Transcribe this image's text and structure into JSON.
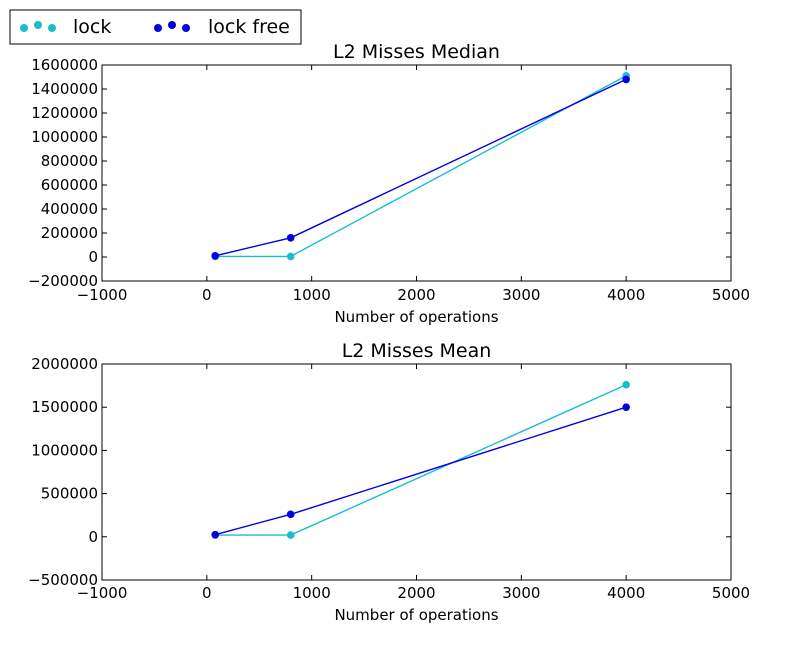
{
  "legend": {
    "placement": "top-left, outside plots",
    "entries": [
      {
        "label": "lock",
        "color": "#17becf"
      },
      {
        "label": "lock free",
        "color": "#0000e0"
      }
    ]
  },
  "chart_data": [
    {
      "type": "line",
      "title": "L2 Misses Median",
      "xlabel": "Number of operations",
      "ylabel": "",
      "xlim": [
        -1000,
        5000
      ],
      "ylim": [
        -200000,
        1600000
      ],
      "xticks": [
        -1000,
        0,
        1000,
        2000,
        3000,
        4000,
        5000
      ],
      "yticks": [
        -200000,
        0,
        200000,
        400000,
        600000,
        800000,
        1000000,
        1200000,
        1400000,
        1600000
      ],
      "grid": false,
      "series": [
        {
          "name": "lock",
          "color": "#17becf",
          "x": [
            80,
            800,
            4000
          ],
          "y": [
            5000,
            5000,
            1510000
          ]
        },
        {
          "name": "lock free",
          "color": "#0000e0",
          "x": [
            80,
            800,
            4000
          ],
          "y": [
            10000,
            160000,
            1480000
          ]
        }
      ]
    },
    {
      "type": "line",
      "title": "L2 Misses Mean",
      "xlabel": "Number of operations",
      "ylabel": "",
      "xlim": [
        -1000,
        5000
      ],
      "ylim": [
        -500000,
        2000000
      ],
      "xticks": [
        -1000,
        0,
        1000,
        2000,
        3000,
        4000,
        5000
      ],
      "yticks": [
        -500000,
        0,
        500000,
        1000000,
        1500000,
        2000000
      ],
      "grid": false,
      "series": [
        {
          "name": "lock",
          "color": "#17becf",
          "x": [
            80,
            800,
            4000
          ],
          "y": [
            20000,
            20000,
            1760000
          ]
        },
        {
          "name": "lock free",
          "color": "#0000e0",
          "x": [
            80,
            800,
            4000
          ],
          "y": [
            25000,
            260000,
            1500000
          ]
        }
      ]
    }
  ]
}
